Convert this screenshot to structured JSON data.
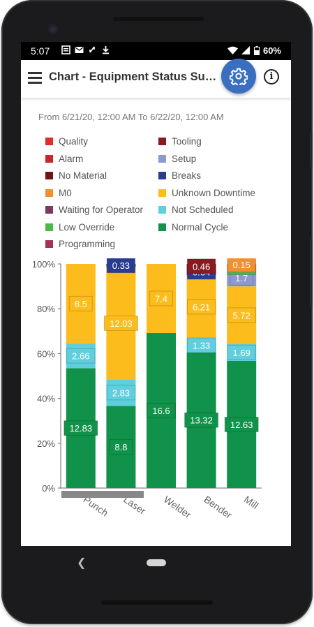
{
  "status_bar": {
    "time": "5:07",
    "battery": "60%",
    "left_icons": [
      "gallery-icon",
      "mail-icon",
      "sync-icon",
      "download-icon"
    ],
    "right_icons": [
      "wifi-icon",
      "signal-icon",
      "battery-icon"
    ]
  },
  "app_bar": {
    "title": "Chart - Equipment Status Summary",
    "settings_icon": "gear-icon",
    "info_icon": "info-icon"
  },
  "date_range": "From 6/21/20, 12:00 AM To 6/22/20, 12:00 AM",
  "legend": [
    {
      "label": "Quality",
      "color": "#e02d2b"
    },
    {
      "label": "Tooling",
      "color": "#8a1a22"
    },
    {
      "label": "Alarm",
      "color": "#c9262e"
    },
    {
      "label": "Setup",
      "color": "#8e99cf"
    },
    {
      "label": "No Material",
      "color": "#6d1414"
    },
    {
      "label": "Breaks",
      "color": "#2a3c91"
    },
    {
      "label": "M0",
      "color": "#f29030"
    },
    {
      "label": "Unknown Downtime",
      "color": "#fbbc1c"
    },
    {
      "label": "Waiting for Operator",
      "color": "#7b3a5e"
    },
    {
      "label": "Not Scheduled",
      "color": "#5fcfdd"
    },
    {
      "label": "Low Override",
      "color": "#4cb848"
    },
    {
      "label": "Normal Cycle",
      "color": "#11924a"
    },
    {
      "label": "Programming",
      "color": "#a3325e"
    }
  ],
  "chart_data": {
    "type": "bar",
    "stacked": true,
    "categories": [
      "Punch",
      "Laser",
      "Welder",
      "Bender",
      "Mill"
    ],
    "ylim": [
      0,
      100
    ],
    "yticks": [
      "0%",
      "20%",
      "40%",
      "60%",
      "80%",
      "100%"
    ],
    "series": [
      {
        "name": "Normal Cycle",
        "color": "#11924a",
        "values": [
          12.83,
          8.8,
          16.6,
          13.32,
          12.63
        ]
      },
      {
        "name": "Not Scheduled",
        "color": "#5fcfdd",
        "values": [
          2.66,
          2.83,
          0,
          1.33,
          1.69
        ]
      },
      {
        "name": "Unknown Downtime",
        "color": "#fbbc1c",
        "values": [
          8.5,
          12.03,
          7.4,
          6.21,
          5.72
        ]
      },
      {
        "name": "Breaks",
        "color": "#2a3c91",
        "values": [
          0,
          0.33,
          0,
          0.64,
          0
        ]
      },
      {
        "name": "Setup",
        "color": "#8e99cf",
        "values": [
          0,
          0,
          0,
          0,
          1.7
        ]
      },
      {
        "name": "Low Override",
        "color": "#4cb848",
        "values": [
          0,
          0,
          0,
          0,
          0.38
        ]
      },
      {
        "name": "M0",
        "color": "#f29030",
        "values": [
          0,
          0,
          0,
          0,
          0.15
        ]
      },
      {
        "name": "Tooling",
        "color": "#8a1a22",
        "values": [
          0,
          0,
          0,
          0.46,
          0
        ]
      }
    ]
  },
  "nav_bar": {
    "back_icon": "back-icon",
    "home_icon": "home-icon"
  }
}
